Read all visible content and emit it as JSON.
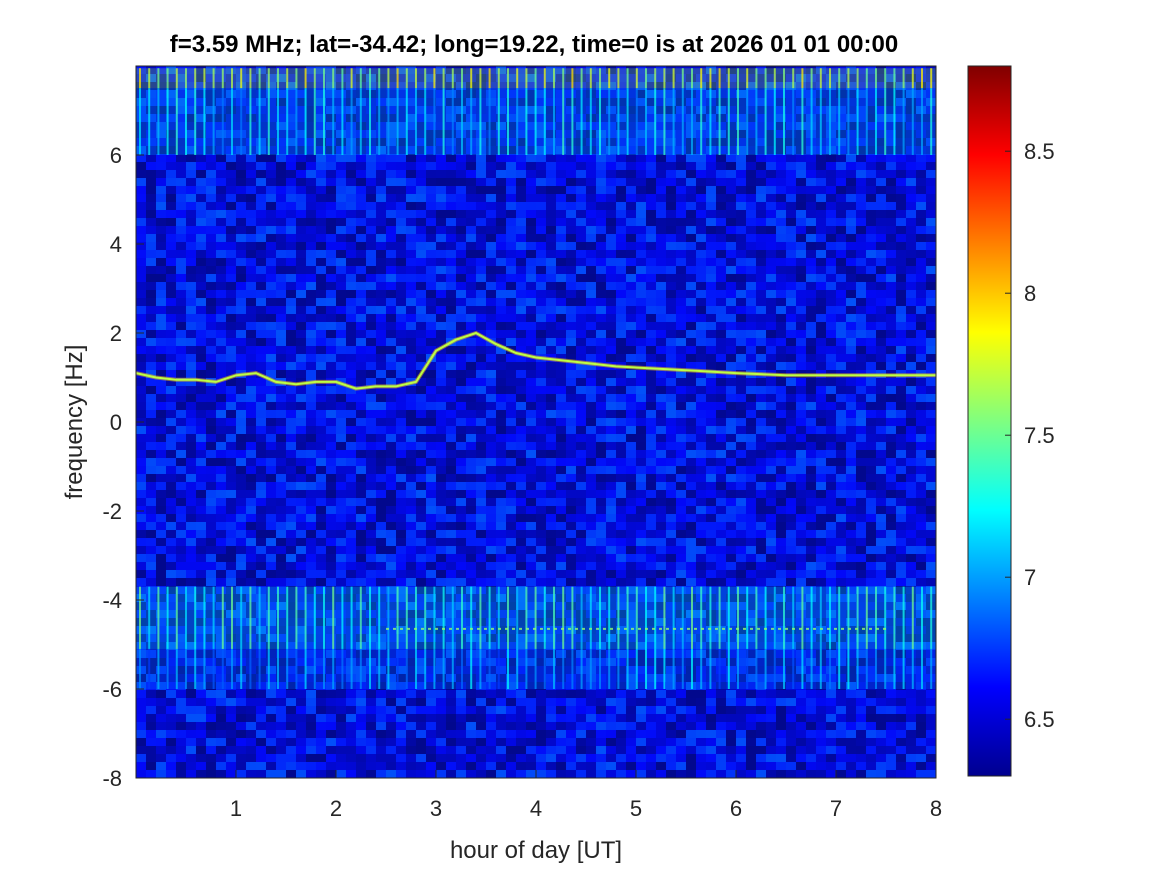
{
  "chart_data": {
    "type": "heatmap",
    "title": "f=3.59 MHz;  lat=-34.42; long=19.22, time=0 is at 2026 01 01 00:00",
    "xlabel": "hour of day [UT]",
    "ylabel": "frequency [Hz]",
    "xlim": [
      0,
      8
    ],
    "ylim": [
      -8,
      8
    ],
    "x_ticks": [
      1,
      2,
      3,
      4,
      5,
      6,
      7,
      8
    ],
    "y_ticks": [
      -8,
      -6,
      -4,
      -2,
      0,
      2,
      4,
      6
    ],
    "x_tick_labels": [
      "1",
      "2",
      "3",
      "4",
      "5",
      "6",
      "7",
      "8"
    ],
    "y_tick_labels": [
      "-8",
      "-6",
      "-4",
      "-2",
      "0",
      "2",
      "4",
      "6"
    ],
    "colormap": "jet",
    "clim": [
      6.3,
      8.8
    ],
    "colorbar_ticks": [
      6.5,
      7,
      7.5,
      8,
      8.5
    ],
    "colorbar_tick_labels": [
      "6.5",
      "7",
      "7.5",
      "8",
      "8.5"
    ],
    "background_level": 6.55,
    "doppler_trace": {
      "x": [
        0.0,
        0.2,
        0.4,
        0.6,
        0.8,
        1.0,
        1.2,
        1.4,
        1.6,
        1.8,
        2.0,
        2.2,
        2.4,
        2.6,
        2.8,
        3.0,
        3.2,
        3.4,
        3.6,
        3.8,
        4.0,
        4.4,
        4.8,
        5.2,
        5.6,
        6.0,
        6.5,
        7.0,
        7.5,
        8.0
      ],
      "y": [
        1.1,
        1.0,
        0.95,
        0.95,
        0.9,
        1.05,
        1.1,
        0.9,
        0.85,
        0.9,
        0.9,
        0.75,
        0.8,
        0.8,
        0.9,
        1.6,
        1.85,
        2.0,
        1.75,
        1.55,
        1.45,
        1.35,
        1.25,
        1.2,
        1.15,
        1.1,
        1.05,
        1.05,
        1.05,
        1.05
      ],
      "level": 7.7
    },
    "bands": [
      {
        "ymin": 7.5,
        "ymax": 7.95,
        "level": 7.6
      },
      {
        "ymin": 6.0,
        "ymax": 7.5,
        "level": 7.05
      },
      {
        "ymin": -5.1,
        "ymax": -3.7,
        "level": 7.2
      },
      {
        "ymin": -6.0,
        "ymax": -5.1,
        "level": 6.9
      }
    ],
    "secondary_trace": {
      "y": -4.65,
      "xmin": 2.5,
      "xmax": 7.5,
      "level": 7.6
    }
  }
}
